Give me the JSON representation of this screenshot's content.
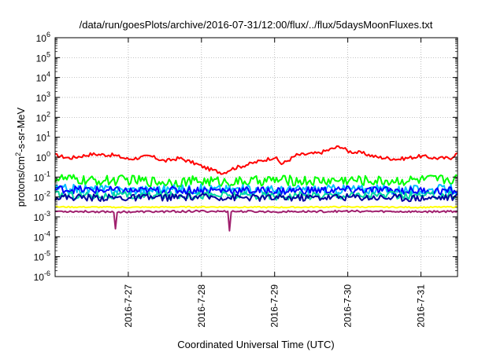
{
  "chart_data": {
    "type": "line",
    "title": "/data/run/goesPlots/archive/2016-07-31/12:00/flux/../flux/5daysMoonFluxes.txt",
    "xlabel": "Coordinated Universal Time (UTC)",
    "ylabel": {
      "base": "protons/cm",
      "sup": "2",
      "rest": "-s-sr-MeV"
    },
    "yscale": "log",
    "ylim_exp": [
      -6,
      6
    ],
    "yticks": [
      {
        "base": "10",
        "exp": "6"
      },
      {
        "base": "10",
        "exp": "5"
      },
      {
        "base": "10",
        "exp": "4"
      },
      {
        "base": "10",
        "exp": "3"
      },
      {
        "base": "10",
        "exp": "2"
      },
      {
        "base": "10",
        "exp": "1"
      },
      {
        "base": "10",
        "exp": "0"
      },
      {
        "base": "10",
        "exp": "-1"
      },
      {
        "base": "10",
        "exp": "-2"
      },
      {
        "base": "10",
        "exp": "-3"
      },
      {
        "base": "10",
        "exp": "-4"
      },
      {
        "base": "10",
        "exp": "-5"
      },
      {
        "base": "10",
        "exp": "-6"
      }
    ],
    "xlim_days": [
      26.0,
      31.5
    ],
    "xticks": [
      {
        "label": "2016-7-27",
        "day": 27
      },
      {
        "label": "2016-7-28",
        "day": 28
      },
      {
        "label": "2016-7-29",
        "day": 29
      },
      {
        "label": "2016-7-30",
        "day": 30
      },
      {
        "label": "2016-7-31",
        "day": 31
      }
    ],
    "grid": true,
    "series": [
      {
        "color": "#ff0000",
        "day": [
          26.0,
          26.2,
          26.5,
          26.8,
          27.0,
          27.3,
          27.5,
          27.7,
          27.9,
          28.1,
          28.3,
          28.4,
          28.6,
          28.8,
          29.0,
          29.1,
          29.3,
          29.6,
          29.9,
          30.0,
          30.2,
          30.4,
          30.7,
          31.0,
          31.2,
          31.4,
          31.5
        ],
        "log10": [
          0.1,
          -0.05,
          0.15,
          0.1,
          -0.1,
          0.05,
          -0.2,
          -0.05,
          -0.3,
          -0.6,
          -0.8,
          -0.6,
          -0.4,
          -0.2,
          0.0,
          -0.35,
          0.1,
          0.2,
          0.55,
          0.3,
          0.2,
          0.0,
          -0.1,
          0.05,
          -0.05,
          -0.05,
          0.2
        ],
        "jitter": 0.09
      },
      {
        "color": "#00ff00",
        "day": [
          26.0,
          26.5,
          27.0,
          27.5,
          28.0,
          28.5,
          29.0,
          29.5,
          30.0,
          30.5,
          31.0,
          31.5
        ],
        "log10": [
          -1.05,
          -1.2,
          -1.15,
          -1.25,
          -1.2,
          -1.25,
          -1.15,
          -1.2,
          -1.15,
          -1.2,
          -1.15,
          -1.1
        ],
        "jitter": 0.26
      },
      {
        "color": "#00bfff",
        "day": [
          26.0,
          27.0,
          28.0,
          29.0,
          30.0,
          31.0,
          31.5
        ],
        "log10": [
          -1.6,
          -1.65,
          -1.6,
          -1.65,
          -1.6,
          -1.65,
          -1.6
        ],
        "jitter": 0.24
      },
      {
        "color": "#0000ff",
        "day": [
          26.0,
          27.0,
          28.0,
          29.0,
          30.0,
          31.0,
          31.5
        ],
        "log10": [
          -1.6,
          -1.7,
          -1.65,
          -1.7,
          -1.65,
          -1.7,
          -1.7
        ],
        "jitter": 0.2
      },
      {
        "color": "#00d8a0",
        "day": [
          26.0,
          27.0,
          28.0,
          29.0,
          30.0,
          31.0,
          31.5
        ],
        "log10": [
          -1.9,
          -1.95,
          -1.9,
          -1.95,
          -1.9,
          -1.95,
          -1.9
        ],
        "jitter": 0.2
      },
      {
        "color": "#0000a0",
        "day": [
          26.0,
          27.0,
          28.0,
          29.0,
          30.0,
          31.0,
          31.5
        ],
        "log10": [
          -2.0,
          -2.05,
          -2.0,
          -2.05,
          -2.0,
          -2.05,
          -2.0
        ],
        "jitter": 0.18
      },
      {
        "color": "#ffff00",
        "day": [
          26.0,
          27.0,
          28.0,
          29.0,
          30.0,
          31.0,
          31.5
        ],
        "log10": [
          -2.5,
          -2.52,
          -2.5,
          -2.52,
          -2.5,
          -2.52,
          -2.5
        ],
        "jitter": 0.03
      },
      {
        "color": "#a0206e",
        "day": [
          26.0,
          27.0,
          28.0,
          29.0,
          30.0,
          31.0,
          31.5
        ],
        "log10": [
          -2.72,
          -2.75,
          -2.72,
          -2.74,
          -2.72,
          -2.74,
          -2.72
        ],
        "jitter": 0.05,
        "dips": [
          [
            26.83,
            -3.6
          ],
          [
            28.38,
            -3.7
          ]
        ]
      }
    ]
  }
}
